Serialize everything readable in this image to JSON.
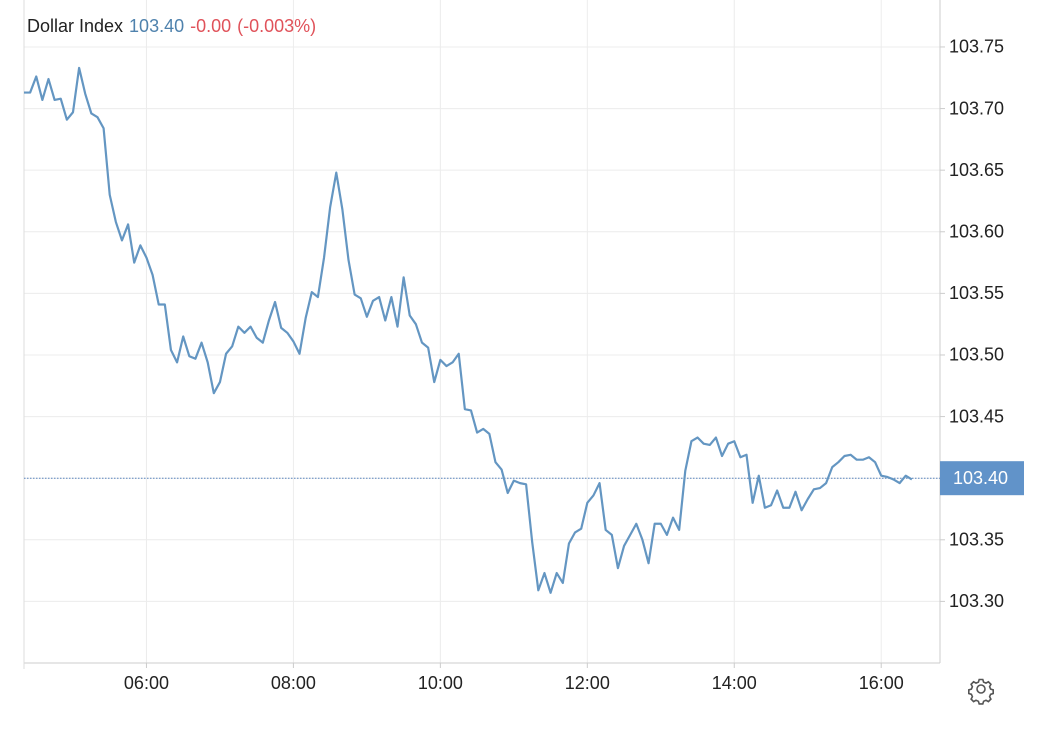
{
  "chart_data": {
    "type": "line",
    "title": "Dollar Index",
    "price": "103.40",
    "change": "-0.00",
    "change_pct": "(-0.003%)",
    "color": "#6496c2",
    "x": [
      "04:20",
      "04:25",
      "04:30",
      "04:35",
      "04:40",
      "04:45",
      "04:50",
      "04:55",
      "05:00",
      "05:05",
      "05:10",
      "05:15",
      "05:20",
      "05:25",
      "05:30",
      "05:35",
      "05:40",
      "05:45",
      "05:50",
      "05:55",
      "06:00",
      "06:05",
      "06:10",
      "06:15",
      "06:20",
      "06:25",
      "06:30",
      "06:35",
      "06:40",
      "06:45",
      "06:50",
      "06:55",
      "07:00",
      "07:05",
      "07:10",
      "07:15",
      "07:20",
      "07:25",
      "07:30",
      "07:35",
      "07:40",
      "07:45",
      "07:50",
      "07:55",
      "08:00",
      "08:05",
      "08:10",
      "08:15",
      "08:20",
      "08:25",
      "08:30",
      "08:35",
      "08:40",
      "08:45",
      "08:50",
      "08:55",
      "09:00",
      "09:05",
      "09:10",
      "09:15",
      "09:20",
      "09:25",
      "09:30",
      "09:35",
      "09:40",
      "09:45",
      "09:50",
      "09:55",
      "10:00",
      "10:05",
      "10:10",
      "10:15",
      "10:20",
      "10:25",
      "10:30",
      "10:35",
      "10:40",
      "10:45",
      "10:50",
      "10:55",
      "11:00",
      "11:05",
      "11:10",
      "11:15",
      "11:20",
      "11:25",
      "11:30",
      "11:35",
      "11:40",
      "11:45",
      "11:50",
      "11:55",
      "12:00",
      "12:05",
      "12:10",
      "12:15",
      "12:20",
      "12:25",
      "12:30",
      "12:35",
      "12:40",
      "12:45",
      "12:50",
      "12:55",
      "13:00",
      "13:05",
      "13:10",
      "13:15",
      "13:20",
      "13:25",
      "13:30",
      "13:35",
      "13:40",
      "13:45",
      "13:50",
      "13:55",
      "14:00",
      "14:05",
      "14:10",
      "14:15",
      "14:20",
      "14:25",
      "14:30",
      "14:35",
      "14:40",
      "14:45",
      "14:50",
      "14:55",
      "15:00",
      "15:05",
      "15:10",
      "15:15",
      "15:20",
      "15:25",
      "15:30",
      "15:35",
      "15:40",
      "15:45",
      "15:50",
      "15:55",
      "16:00",
      "16:05",
      "16:10",
      "16:15",
      "16:20",
      "16:25"
    ],
    "values": [
      103.713,
      103.713,
      103.726,
      103.707,
      103.724,
      103.707,
      103.708,
      103.691,
      103.697,
      103.733,
      103.712,
      103.696,
      103.693,
      103.684,
      103.63,
      103.608,
      103.593,
      103.606,
      103.575,
      103.589,
      103.579,
      103.565,
      103.541,
      103.541,
      103.504,
      103.494,
      103.515,
      103.499,
      103.497,
      103.51,
      103.494,
      103.469,
      103.478,
      103.501,
      103.507,
      103.523,
      103.518,
      103.523,
      103.514,
      103.51,
      103.528,
      103.543,
      103.522,
      103.518,
      103.511,
      103.501,
      103.53,
      103.551,
      103.547,
      103.579,
      103.62,
      103.648,
      103.618,
      103.577,
      103.549,
      103.546,
      103.531,
      103.544,
      103.547,
      103.528,
      103.547,
      103.523,
      103.563,
      103.532,
      103.525,
      103.51,
      103.506,
      103.478,
      103.496,
      103.491,
      103.494,
      103.501,
      103.456,
      103.455,
      103.437,
      103.44,
      103.436,
      103.413,
      103.407,
      103.388,
      103.398,
      103.396,
      103.395,
      103.348,
      103.309,
      103.323,
      103.307,
      103.323,
      103.315,
      103.347,
      103.356,
      103.359,
      103.38,
      103.386,
      103.396,
      103.358,
      103.354,
      103.327,
      103.345,
      103.354,
      103.363,
      103.35,
      103.331,
      103.363,
      103.363,
      103.354,
      103.368,
      103.358,
      103.406,
      103.43,
      103.433,
      103.428,
      103.427,
      103.433,
      103.418,
      103.428,
      103.43,
      103.417,
      103.419,
      103.38,
      103.402,
      103.376,
      103.378,
      103.39,
      103.376,
      103.376,
      103.389,
      103.374,
      103.383,
      103.391,
      103.392,
      103.396,
      103.409,
      103.413,
      103.418,
      103.419,
      103.415,
      103.415,
      103.417,
      103.413,
      103.402,
      103.401,
      103.399,
      103.396,
      103.402,
      103.399
    ],
    "xlim": [
      "04:20",
      "16:48"
    ],
    "xticks": [
      "06:00",
      "08:00",
      "10:00",
      "12:00",
      "14:00",
      "16:00"
    ],
    "ylim": [
      103.25,
      103.78
    ],
    "yticks": [
      {
        "value": 103.3,
        "label": "103.30"
      },
      103.35,
      {
        "value": 103.4,
        "label": "103.40"
      },
      103.45,
      {
        "value": 103.5,
        "label": "103.50"
      },
      103.55,
      {
        "value": 103.6,
        "label": "103.60"
      },
      103.65,
      {
        "value": 103.7,
        "label": "103.70"
      },
      103.75
    ],
    "last_price": {
      "value": 103.4,
      "label": "103.40"
    },
    "grid": true
  }
}
